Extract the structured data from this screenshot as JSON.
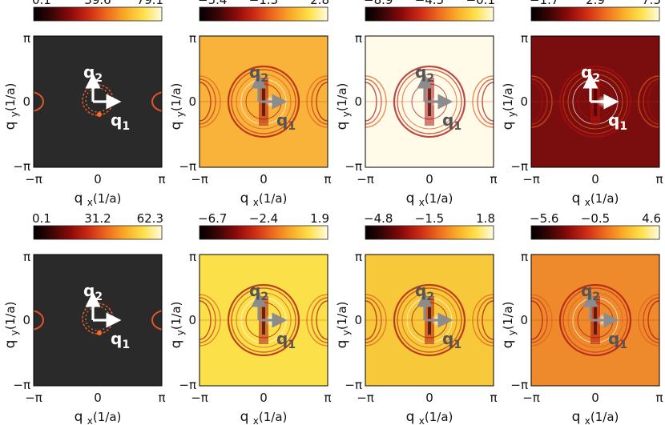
{
  "figure": {
    "x_axis_label": "q",
    "x_axis_subscript": "x",
    "x_axis_unit": "(1/a)",
    "y_axis_label": "q",
    "y_axis_subscript": "y",
    "y_axis_unit": "(1/a)",
    "tick_neg_pi": "−π",
    "tick_zero": "0",
    "tick_pi": "π",
    "vector_1_letter": "q",
    "vector_1_sub": "1",
    "vector_2_letter": "q",
    "vector_2_sub": "2",
    "colormap": [
      "#000000",
      "#3b0505",
      "#8b0a0a",
      "#cc2b14",
      "#ee6a1e",
      "#f9ab28",
      "#ffe04a",
      "#fffbe0"
    ],
    "arrow_colors": {
      "gray": "#8c8c8c",
      "white": "#ffffff"
    }
  },
  "chart_data": [
    {
      "type": "heatmap",
      "row": 1,
      "col": 1,
      "colorbar_ticks": [
        "0.1",
        "39.6",
        "79.1"
      ],
      "clim": [
        0.1,
        79.1
      ],
      "xlim": [
        "−π",
        "π"
      ],
      "ylim": [
        "−π",
        "π"
      ],
      "background": "#2a2a2a",
      "arrow_color": "white"
    },
    {
      "type": "heatmap",
      "row": 1,
      "col": 2,
      "colorbar_ticks": [
        "−5.4",
        "−1.3",
        "2.8"
      ],
      "clim": [
        -5.4,
        2.8
      ],
      "xlim": [
        "−π",
        "π"
      ],
      "ylim": [
        "−π",
        "π"
      ],
      "background": "#f9b23a",
      "arrow_color": "gray"
    },
    {
      "type": "heatmap",
      "row": 1,
      "col": 3,
      "colorbar_ticks": [
        "−8.9",
        "−4.5",
        "−0.1"
      ],
      "clim": [
        -8.9,
        -0.1
      ],
      "xlim": [
        "−π",
        "π"
      ],
      "ylim": [
        "−π",
        "π"
      ],
      "background": "#fffbe8",
      "arrow_color": "gray"
    },
    {
      "type": "heatmap",
      "row": 1,
      "col": 4,
      "colorbar_ticks": [
        "−1.7",
        "2.9",
        "7.5"
      ],
      "clim": [
        -1.7,
        7.5
      ],
      "xlim": [
        "−π",
        "π"
      ],
      "ylim": [
        "−π",
        "π"
      ],
      "background": "#7a0d0d",
      "arrow_color": "white"
    },
    {
      "type": "heatmap",
      "row": 2,
      "col": 1,
      "colorbar_ticks": [
        "0.1",
        "31.2",
        "62.3"
      ],
      "clim": [
        0.1,
        62.3
      ],
      "xlim": [
        "−π",
        "π"
      ],
      "ylim": [
        "−π",
        "π"
      ],
      "background": "#2a2a2a",
      "arrow_color": "white"
    },
    {
      "type": "heatmap",
      "row": 2,
      "col": 2,
      "colorbar_ticks": [
        "−6.7",
        "−2.4",
        "1.9"
      ],
      "clim": [
        -6.7,
        1.9
      ],
      "xlim": [
        "−π",
        "π"
      ],
      "ylim": [
        "−π",
        "π"
      ],
      "background": "#fbe04a",
      "arrow_color": "gray"
    },
    {
      "type": "heatmap",
      "row": 2,
      "col": 3,
      "colorbar_ticks": [
        "−4.8",
        "−1.5",
        "1.8"
      ],
      "clim": [
        -4.8,
        1.8
      ],
      "xlim": [
        "−π",
        "π"
      ],
      "ylim": [
        "−π",
        "π"
      ],
      "background": "#f6c83a",
      "arrow_color": "gray"
    },
    {
      "type": "heatmap",
      "row": 2,
      "col": 4,
      "colorbar_ticks": [
        "−5.6",
        "−0.5",
        "4.6"
      ],
      "clim": [
        -5.6,
        4.6
      ],
      "xlim": [
        "−π",
        "π"
      ],
      "ylim": [
        "−π",
        "π"
      ],
      "background": "#ef8a2c",
      "arrow_color": "gray"
    }
  ]
}
